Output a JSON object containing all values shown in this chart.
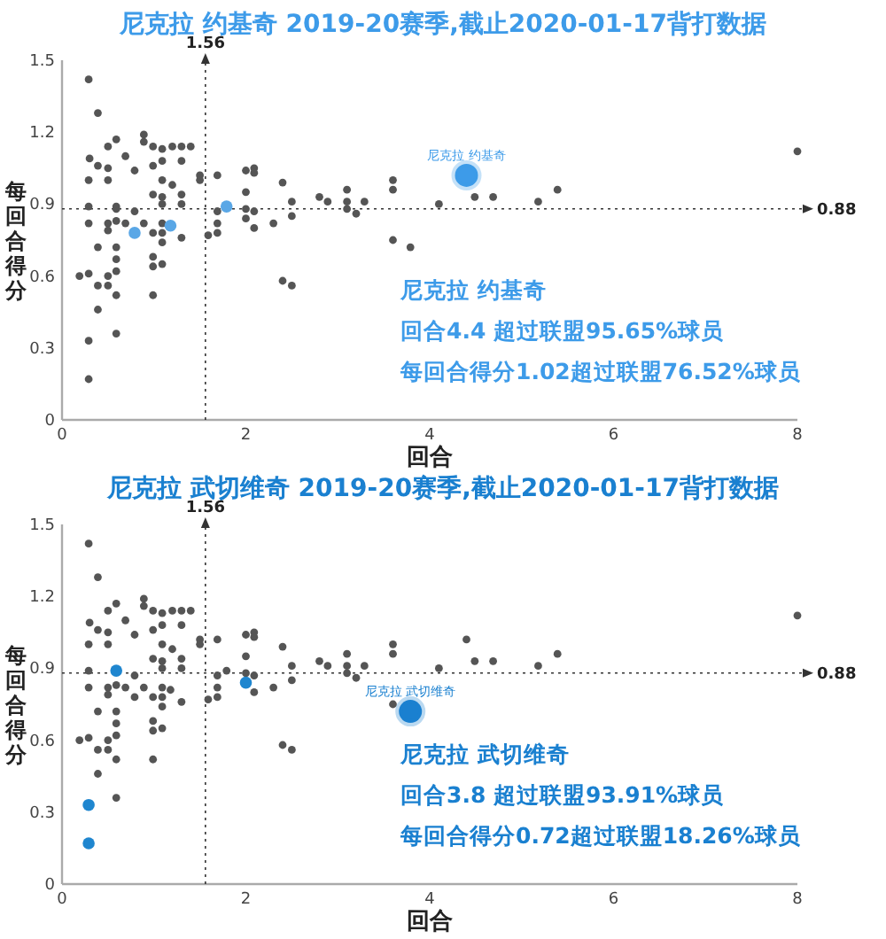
{
  "chart_data": [
    {
      "type": "scatter",
      "title": "尼克拉 约基奇 2019-20赛季,截止2020-01-17背打数据",
      "xlabel": "回合",
      "ylabel": "每回合得分",
      "xlim": [
        0,
        8
      ],
      "ylim": [
        0,
        1.5
      ],
      "xticks": [
        0,
        2,
        4,
        6,
        8
      ],
      "yticks": [
        0,
        0.3,
        0.6,
        0.9,
        1.2,
        1.5
      ],
      "grid": false,
      "marker": "circle",
      "series": [
        {
          "color": "#555555",
          "x": [
            0.29,
            0.39,
            0.3,
            0.5,
            0.59,
            0.69,
            0.39,
            0.5,
            0.79,
            0.29,
            0.5,
            0.89,
            0.89,
            0.99,
            1.09,
            1.2,
            1.3,
            1.4,
            0.99,
            1.09,
            1.3,
            1.09,
            1.2,
            1.3,
            1.3,
            0.99,
            1.09,
            1.09,
            1.5,
            1.5,
            1.69,
            0.29,
            0.29,
            0.5,
            0.5,
            0.59,
            0.59,
            0.79,
            0.69,
            0.89,
            1.09,
            1.09,
            0.99,
            1.09,
            1.3,
            0.39,
            0.59,
            0.59,
            0.59,
            0.5,
            0.19,
            0.29,
            0.39,
            0.5,
            0.59,
            0.99,
            0.99,
            1.09,
            0.99,
            0.39,
            0.59,
            1.59,
            1.69,
            1.69,
            1.69,
            2.0,
            2.09,
            2.09,
            2.4,
            2.0,
            2.0,
            2.09,
            2.09,
            2.3,
            2.5,
            2.5,
            2.8,
            2.89,
            3.1,
            3.1,
            3.1,
            3.2,
            3.29,
            3.6,
            3.6,
            3.6,
            2.4,
            2.5,
            4.1,
            4.49,
            4.69,
            5.18,
            5.39,
            8.0,
            0.29,
            0.29,
            0.59,
            2.0,
            3.79
          ],
          "values": [
            1.42,
            1.28,
            1.09,
            1.14,
            1.17,
            1.1,
            1.06,
            1.05,
            1.04,
            1.0,
            1.0,
            1.19,
            1.16,
            1.14,
            1.13,
            1.14,
            1.14,
            1.14,
            1.06,
            1.08,
            1.08,
            1.0,
            0.98,
            0.94,
            0.9,
            0.94,
            0.93,
            0.9,
            1.02,
            1.0,
            1.02,
            0.89,
            0.82,
            0.82,
            0.79,
            0.88,
            0.83,
            0.87,
            0.82,
            0.82,
            0.82,
            0.78,
            0.78,
            0.74,
            0.76,
            0.72,
            0.72,
            0.67,
            0.62,
            0.6,
            0.6,
            0.61,
            0.56,
            0.56,
            0.52,
            0.68,
            0.64,
            0.65,
            0.52,
            0.46,
            0.36,
            0.77,
            0.82,
            0.78,
            0.87,
            1.04,
            1.05,
            1.03,
            0.99,
            0.95,
            0.88,
            0.87,
            0.8,
            0.82,
            0.91,
            0.85,
            0.93,
            0.91,
            0.96,
            0.91,
            0.88,
            0.86,
            0.91,
            1.0,
            0.96,
            0.75,
            0.58,
            0.56,
            0.9,
            0.93,
            0.93,
            0.91,
            0.96,
            1.12,
            0.33,
            0.17,
            0.89,
            0.84,
            0.72
          ]
        },
        {
          "color": "#5aa7e6",
          "x": [
            0.79,
            1.18,
            1.79
          ],
          "values": [
            0.78,
            0.81,
            0.89
          ]
        },
        {
          "color": "#3d9be9",
          "x": [
            4.4
          ],
          "values": [
            1.02
          ]
        }
      ],
      "ref_lines": [
        {
          "axis": "x",
          "value": 1.56,
          "label": "1.56",
          "color": "#333333",
          "line_style": "dotted"
        },
        {
          "axis": "y",
          "value": 0.88,
          "label": "0.88",
          "color": "#333333",
          "line_style": "dotted"
        }
      ],
      "annotations": [
        {
          "text": "尼克拉 约基奇",
          "x": 4.4,
          "y": 1.02
        },
        "尼克拉 约基奇",
        "回合4.4 超过联盟95.65%球员",
        "每回合得分1.02超过联盟76.52%球员"
      ]
    },
    {
      "type": "scatter",
      "title": "尼克拉 武切维奇 2019-20赛季,截止2020-01-17背打数据",
      "xlabel": "回合",
      "ylabel": "每回合得分",
      "xlim": [
        0,
        8
      ],
      "ylim": [
        0,
        1.5
      ],
      "xticks": [
        0,
        2,
        4,
        6,
        8
      ],
      "yticks": [
        0,
        0.3,
        0.6,
        0.9,
        1.2,
        1.5
      ],
      "grid": false,
      "marker": "circle",
      "series": [
        {
          "color": "#555555",
          "x": [
            0.29,
            0.39,
            0.3,
            0.5,
            0.59,
            0.69,
            0.39,
            0.5,
            0.79,
            0.29,
            0.5,
            0.89,
            0.89,
            0.99,
            1.09,
            1.2,
            1.3,
            1.4,
            0.99,
            1.09,
            1.3,
            1.09,
            1.2,
            1.3,
            1.3,
            0.99,
            1.09,
            1.09,
            1.5,
            1.5,
            1.69,
            0.29,
            0.29,
            0.5,
            0.5,
            0.59,
            0.79,
            0.69,
            0.89,
            1.09,
            1.09,
            0.99,
            1.09,
            1.3,
            0.39,
            0.59,
            0.59,
            0.59,
            0.5,
            0.19,
            0.29,
            0.39,
            0.5,
            0.59,
            0.99,
            0.99,
            1.09,
            0.99,
            0.39,
            0.59,
            1.59,
            1.69,
            1.69,
            1.69,
            2.0,
            2.09,
            2.09,
            2.4,
            2.0,
            2.0,
            2.09,
            2.09,
            2.3,
            2.5,
            2.5,
            2.8,
            2.89,
            3.1,
            3.1,
            3.1,
            3.2,
            3.29,
            3.6,
            3.6,
            3.6,
            2.4,
            2.5,
            4.1,
            4.49,
            4.69,
            5.18,
            5.39,
            8.0,
            0.79,
            1.18,
            1.79,
            4.4
          ],
          "values": [
            1.42,
            1.28,
            1.09,
            1.14,
            1.17,
            1.1,
            1.06,
            1.05,
            1.04,
            1.0,
            1.0,
            1.19,
            1.16,
            1.14,
            1.13,
            1.14,
            1.14,
            1.14,
            1.06,
            1.08,
            1.08,
            1.0,
            0.98,
            0.94,
            0.9,
            0.94,
            0.93,
            0.9,
            1.02,
            1.0,
            1.02,
            0.89,
            0.82,
            0.82,
            0.79,
            0.83,
            0.87,
            0.82,
            0.82,
            0.82,
            0.78,
            0.78,
            0.74,
            0.76,
            0.72,
            0.72,
            0.67,
            0.62,
            0.6,
            0.6,
            0.61,
            0.56,
            0.56,
            0.52,
            0.68,
            0.64,
            0.65,
            0.52,
            0.46,
            0.36,
            0.77,
            0.82,
            0.78,
            0.87,
            1.04,
            1.05,
            1.03,
            0.99,
            0.95,
            0.88,
            0.87,
            0.8,
            0.82,
            0.91,
            0.85,
            0.93,
            0.91,
            0.96,
            0.91,
            0.88,
            0.86,
            0.91,
            1.0,
            0.96,
            0.75,
            0.58,
            0.56,
            0.9,
            0.93,
            0.93,
            0.91,
            0.96,
            1.12,
            0.78,
            0.81,
            0.89,
            1.02
          ]
        },
        {
          "color": "#1f86cf",
          "x": [
            0.29,
            0.29,
            0.59,
            2.0
          ],
          "values": [
            0.33,
            0.17,
            0.89,
            0.84
          ]
        },
        {
          "color": "#1a80d0",
          "x": [
            3.79
          ],
          "values": [
            0.72
          ]
        }
      ],
      "ref_lines": [
        {
          "axis": "x",
          "value": 1.56,
          "label": "1.56",
          "color": "#333333",
          "line_style": "dotted"
        },
        {
          "axis": "y",
          "value": 0.88,
          "label": "0.88",
          "color": "#333333",
          "line_style": "dotted"
        }
      ],
      "annotations": [
        {
          "text": "尼克拉 武切维奇",
          "x": 3.79,
          "y": 0.72
        },
        "尼克拉 武切维奇",
        "回合3.8 超过联盟93.91%球员",
        "每回合得分0.72超过联盟18.26%球员"
      ]
    }
  ]
}
